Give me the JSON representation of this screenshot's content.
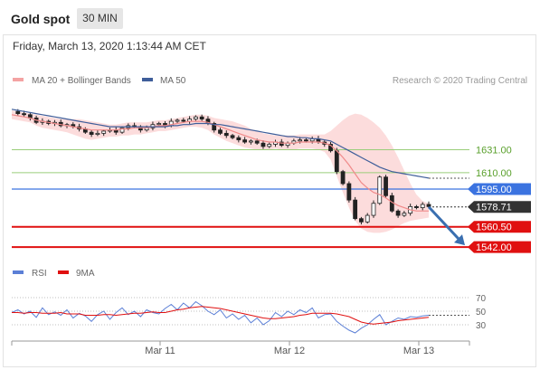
{
  "header": {
    "title": "Gold spot",
    "timeframe": "30 MIN"
  },
  "chart_data": [
    {
      "type": "line",
      "subtitle": "Friday, March 13, 2020 1:13:44 AM CET",
      "credit": "Research © 2020 Trading Central",
      "legend": [
        {
          "name": "MA 20 + Bollinger Bands",
          "color": "#f4a3a3"
        },
        {
          "name": "MA 50",
          "color": "#3f5e9a"
        }
      ],
      "ylim": [
        1533,
        1686
      ],
      "x": [
        "Mar 11",
        "Mar 12",
        "Mar 13"
      ],
      "horizontal_levels": [
        {
          "label": "1631.00",
          "value": 1631.0,
          "color": "#9acd7a",
          "kind": "resistance"
        },
        {
          "label": "1610.00",
          "value": 1610.0,
          "color": "#9acd7a",
          "kind": "resistance"
        },
        {
          "label": "1595.00",
          "value": 1595.0,
          "color": "#3b73e0",
          "kind": "pivot"
        },
        {
          "label": "1578.71",
          "value": 1578.71,
          "color": "#333333",
          "kind": "last price"
        },
        {
          "label": "1560.50",
          "value": 1560.5,
          "color": "#e01010",
          "kind": "support"
        },
        {
          "label": "1542.00",
          "value": 1542.0,
          "color": "#e01010",
          "kind": "support"
        }
      ],
      "price_series": [
        1666,
        1664,
        1663,
        1660,
        1656,
        1657,
        1655,
        1656,
        1653,
        1654,
        1652,
        1650,
        1647,
        1645,
        1646,
        1648,
        1649,
        1647,
        1651,
        1653,
        1652,
        1649,
        1651,
        1654,
        1655,
        1653,
        1657,
        1658,
        1657,
        1659,
        1661,
        1659,
        1655,
        1649,
        1646,
        1644,
        1642,
        1640,
        1638,
        1639,
        1637,
        1634,
        1636,
        1638,
        1635,
        1637,
        1639,
        1640,
        1639,
        1641,
        1638,
        1636,
        1630,
        1611,
        1600,
        1585,
        1568,
        1565,
        1571,
        1582,
        1606,
        1589,
        1575,
        1571,
        1573,
        1579,
        1578,
        1581,
        1579
      ],
      "ma20_series": [
        1663,
        1662,
        1661,
        1660,
        1658,
        1657,
        1656,
        1655,
        1654,
        1653,
        1652,
        1651,
        1650,
        1649,
        1649,
        1649,
        1649,
        1649,
        1650,
        1650,
        1651,
        1651,
        1651,
        1652,
        1653,
        1653,
        1654,
        1655,
        1656,
        1657,
        1657,
        1657,
        1656,
        1654,
        1652,
        1650,
        1648,
        1646,
        1644,
        1642,
        1640,
        1639,
        1638,
        1638,
        1637,
        1637,
        1637,
        1638,
        1638,
        1638,
        1638,
        1637,
        1635,
        1630,
        1624,
        1617,
        1609,
        1601,
        1596,
        1592,
        1590,
        1587,
        1583,
        1580,
        1578,
        1576,
        1575,
        1575,
        1575
      ],
      "ma50_series": [
        1668,
        1667,
        1666,
        1665,
        1664,
        1663,
        1662,
        1661,
        1660,
        1659,
        1658,
        1657,
        1656,
        1655,
        1654,
        1653,
        1652,
        1652,
        1652,
        1652,
        1652,
        1652,
        1652,
        1652,
        1652,
        1652,
        1653,
        1653,
        1654,
        1654,
        1655,
        1655,
        1655,
        1654,
        1654,
        1653,
        1652,
        1651,
        1650,
        1649,
        1648,
        1647,
        1646,
        1645,
        1644,
        1643,
        1643,
        1642,
        1642,
        1641,
        1641,
        1640,
        1639,
        1636,
        1633,
        1630,
        1627,
        1624,
        1621,
        1618,
        1615,
        1613,
        1611,
        1610,
        1609,
        1608,
        1607,
        1606,
        1605
      ],
      "bb_upper_series": [
        1667,
        1666,
        1665,
        1664,
        1663,
        1662,
        1661,
        1660,
        1659,
        1659,
        1659,
        1659,
        1658,
        1657,
        1656,
        1655,
        1654,
        1654,
        1655,
        1656,
        1656,
        1656,
        1656,
        1657,
        1658,
        1658,
        1659,
        1660,
        1661,
        1662,
        1663,
        1663,
        1662,
        1660,
        1659,
        1658,
        1657,
        1655,
        1653,
        1650,
        1648,
        1646,
        1645,
        1644,
        1644,
        1644,
        1644,
        1645,
        1645,
        1645,
        1645,
        1645,
        1648,
        1653,
        1658,
        1662,
        1664,
        1663,
        1660,
        1656,
        1651,
        1644,
        1635,
        1624,
        1612,
        1600,
        1590,
        1584,
        1582
      ],
      "bb_lower_series": [
        1659,
        1658,
        1657,
        1656,
        1653,
        1651,
        1650,
        1649,
        1648,
        1647,
        1645,
        1643,
        1641,
        1640,
        1641,
        1642,
        1643,
        1643,
        1644,
        1644,
        1645,
        1645,
        1646,
        1647,
        1648,
        1648,
        1649,
        1650,
        1651,
        1652,
        1652,
        1651,
        1649,
        1645,
        1642,
        1639,
        1637,
        1635,
        1633,
        1632,
        1631,
        1631,
        1631,
        1632,
        1631,
        1631,
        1631,
        1632,
        1632,
        1632,
        1631,
        1629,
        1622,
        1607,
        1592,
        1578,
        1566,
        1559,
        1556,
        1555,
        1555,
        1556,
        1558,
        1561,
        1564,
        1566,
        1567,
        1568,
        1569
      ],
      "projection": {
        "from": 1578.71,
        "to": 1542.0,
        "color": "#3a6fb0"
      }
    },
    {
      "type": "line",
      "legend": [
        {
          "name": "RSI",
          "color": "#5b7fd6"
        },
        {
          "name": "9MA",
          "color": "#e01010"
        }
      ],
      "ylim": [
        10,
        90
      ],
      "y_ticks": [
        "70",
        "50",
        "30"
      ],
      "rsi_series": [
        48,
        52,
        46,
        50,
        41,
        55,
        45,
        49,
        44,
        52,
        40,
        47,
        43,
        35,
        45,
        50,
        38,
        48,
        55,
        45,
        50,
        42,
        52,
        48,
        46,
        54,
        60,
        52,
        62,
        55,
        64,
        58,
        50,
        45,
        52,
        40,
        46,
        38,
        44,
        33,
        40,
        30,
        36,
        48,
        42,
        50,
        45,
        52,
        48,
        55,
        40,
        45,
        46,
        35,
        28,
        22,
        18,
        25,
        30,
        38,
        45,
        30,
        35,
        40,
        38,
        42,
        41,
        43,
        44
      ],
      "ma9_series": [
        48,
        48,
        47,
        48,
        48,
        47,
        47,
        47,
        48,
        46,
        46,
        46,
        44,
        44,
        44,
        45,
        45,
        44,
        45,
        46,
        47,
        47,
        48,
        49,
        48,
        48,
        50,
        52,
        53,
        55,
        56,
        57,
        56,
        55,
        54,
        52,
        50,
        48,
        46,
        44,
        42,
        40,
        39,
        39,
        40,
        41,
        42,
        44,
        45,
        47,
        47,
        47,
        47,
        46,
        44,
        42,
        38,
        34,
        32,
        31,
        32,
        33,
        34,
        36,
        37,
        38,
        39,
        40,
        41
      ]
    }
  ]
}
